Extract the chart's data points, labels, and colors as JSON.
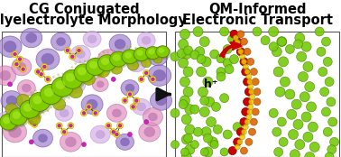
{
  "title_left_line1": "CG Conjugated",
  "title_left_line2": "Polyelectrolyte Morphology",
  "title_right_line1": "QM-Informed",
  "title_right_line2": "Electronic Transport",
  "title_fontsize": 10.5,
  "title_fontweight": "bold",
  "fig_width": 3.78,
  "fig_height": 1.74,
  "dpi": 100,
  "bg_color": "#ffffff",
  "border_color": "#555555",
  "arrow_color": "#111111",
  "h_plus_label": "h⁺",
  "colors": {
    "large_purple": "#a080cc",
    "large_purple_edge": "#6040a0",
    "large_pink": "#e090c0",
    "large_pink_edge": "#b060a0",
    "lavender_blob": "#d8b0e8",
    "small_yellow": "#f0e020",
    "small_yellow_edge": "#c0a000",
    "small_magenta": "#d020c0",
    "small_magenta_edge": "#900090",
    "green_polymer": "#80cc00",
    "green_polymer_edge": "#508000",
    "green_polymer_shadow": "#60a000",
    "olive_green": "#a0b000",
    "right_green": "#78cc10",
    "right_green_edge": "#4a8000",
    "red_path": "#cc0000",
    "orange_path": "#dd6600",
    "yellow_path": "#eecc00",
    "red_arrow": "#cc0000",
    "white_bg": "#ffffff"
  }
}
